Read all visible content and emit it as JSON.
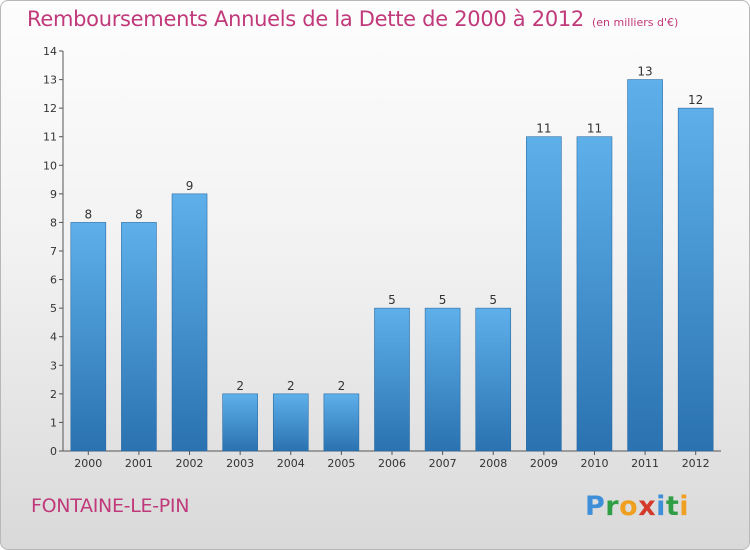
{
  "title": "Remboursements Annuels de la Dette de 2000 à 2012",
  "unit": "(en milliers d'€)",
  "commune": "FONTAINE-LE-PIN",
  "logo": {
    "letters": [
      "P",
      "r",
      "o",
      "x",
      "i",
      "t",
      "i"
    ],
    "colors": [
      "#3c8fd8",
      "#2f9e44",
      "#f0a020",
      "#d33a2c",
      "#3c8fd8",
      "#2f9e44",
      "#f0a020"
    ]
  },
  "colors": {
    "title": "#c0397a",
    "bar_top": "#5eb0ea",
    "bar_bottom": "#2a72b0"
  },
  "chart_data": {
    "type": "bar",
    "categories": [
      "2000",
      "2001",
      "2002",
      "2003",
      "2004",
      "2005",
      "2006",
      "2007",
      "2008",
      "2009",
      "2010",
      "2011",
      "2012"
    ],
    "values": [
      8,
      8,
      9,
      2,
      2,
      2,
      5,
      5,
      5,
      11,
      11,
      13,
      12
    ],
    "title": "Remboursements Annuels de la Dette de 2000 à 2012",
    "xlabel": "",
    "ylabel": "",
    "ylim": [
      0,
      14
    ],
    "yticks": [
      0,
      1,
      2,
      3,
      4,
      5,
      6,
      7,
      8,
      9,
      10,
      11,
      12,
      13,
      14
    ],
    "grid": false,
    "data_labels": true
  }
}
